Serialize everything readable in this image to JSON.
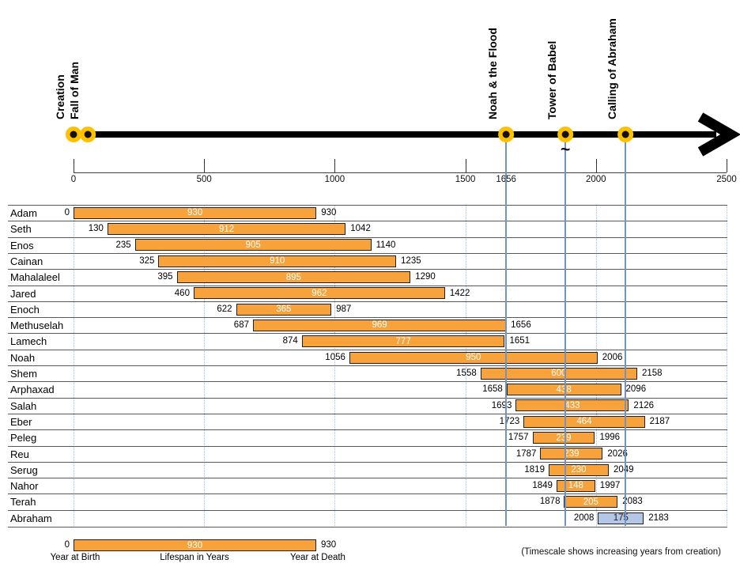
{
  "colors": {
    "bar_fill": "#F7A23B",
    "bar_border": "#1F1F1F",
    "highlight_fill": "#B4C7E7",
    "highlight_text": "#1F1F1F",
    "marker_yellow": "#FFC000",
    "marker_center": "#111111",
    "timeline_black": "#000000",
    "guide_line_blue": "#7193C6",
    "grid_dotted_blue": "#A8C4E4",
    "row_border_gray": "#595959"
  },
  "chart_data": {
    "type": "bar",
    "subtype": "gantt-lifespan-timeline",
    "axis": {
      "range": [
        0,
        2500
      ],
      "ticks": [
        0,
        500,
        1000,
        1500,
        2000,
        2500
      ],
      "extra_label": 1656,
      "grid": "dotted vertical every 500 years"
    },
    "timeline_events": [
      {
        "label": "Creation",
        "year": 0,
        "guide_line": false,
        "approx": false
      },
      {
        "label": "Fall of Man",
        "year": 55,
        "guide_line": false,
        "approx": false
      },
      {
        "label": "Noah & the Flood",
        "year": 1656,
        "guide_line": true,
        "approx": false
      },
      {
        "label": "Tower of Babel",
        "year": 1883,
        "guide_line": true,
        "approx": true
      },
      {
        "label": "Calling of Abraham",
        "year": 2113,
        "guide_line": true,
        "approx": false
      }
    ],
    "approx_symbol": "~",
    "people": [
      {
        "name": "Adam",
        "birth": 0,
        "lifespan": 930,
        "death": 930,
        "highlight": false
      },
      {
        "name": "Seth",
        "birth": 130,
        "lifespan": 912,
        "death": 1042,
        "highlight": false
      },
      {
        "name": "Enos",
        "birth": 235,
        "lifespan": 905,
        "death": 1140,
        "highlight": false
      },
      {
        "name": "Cainan",
        "birth": 325,
        "lifespan": 910,
        "death": 1235,
        "highlight": false
      },
      {
        "name": "Mahalaleel",
        "birth": 395,
        "lifespan": 895,
        "death": 1290,
        "highlight": false
      },
      {
        "name": "Jared",
        "birth": 460,
        "lifespan": 962,
        "death": 1422,
        "highlight": false
      },
      {
        "name": "Enoch",
        "birth": 622,
        "lifespan": 365,
        "death": 987,
        "highlight": false
      },
      {
        "name": "Methuselah",
        "birth": 687,
        "lifespan": 969,
        "death": 1656,
        "highlight": false
      },
      {
        "name": "Lamech",
        "birth": 874,
        "lifespan": 777,
        "death": 1651,
        "highlight": false
      },
      {
        "name": "Noah",
        "birth": 1056,
        "lifespan": 950,
        "death": 2006,
        "highlight": false
      },
      {
        "name": "Shem",
        "birth": 1558,
        "lifespan": 600,
        "death": 2158,
        "highlight": false
      },
      {
        "name": "Arphaxad",
        "birth": 1658,
        "lifespan": 438,
        "death": 2096,
        "highlight": false
      },
      {
        "name": "Salah",
        "birth": 1693,
        "lifespan": 433,
        "death": 2126,
        "highlight": false
      },
      {
        "name": "Eber",
        "birth": 1723,
        "lifespan": 464,
        "death": 2187,
        "highlight": false
      },
      {
        "name": "Peleg",
        "birth": 1757,
        "lifespan": 239,
        "death": 1996,
        "highlight": false
      },
      {
        "name": "Reu",
        "birth": 1787,
        "lifespan": 239,
        "death": 2026,
        "highlight": false
      },
      {
        "name": "Serug",
        "birth": 1819,
        "lifespan": 230,
        "death": 2049,
        "highlight": false
      },
      {
        "name": "Nahor",
        "birth": 1849,
        "lifespan": 148,
        "death": 1997,
        "highlight": false
      },
      {
        "name": "Terah",
        "birth": 1878,
        "lifespan": 205,
        "death": 2083,
        "highlight": false
      },
      {
        "name": "Abraham",
        "birth": 2008,
        "lifespan": 175,
        "death": 2183,
        "highlight": true
      }
    ],
    "legend": {
      "birth": 0,
      "lifespan": 930,
      "death": 930,
      "birth_label": "Year at Birth",
      "lifespan_label": "Lifespan in Years",
      "death_label": "Year at Death"
    },
    "footnote": "(Timescale shows increasing years from creation)"
  }
}
